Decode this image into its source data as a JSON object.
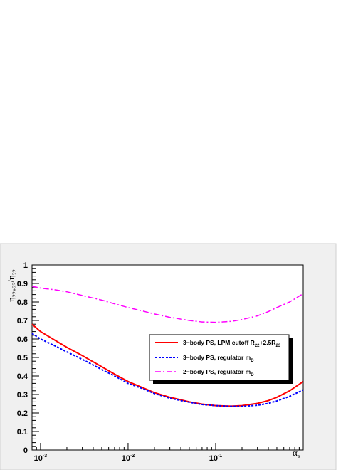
{
  "chart_data": {
    "type": "line",
    "xscale": "log",
    "xlim": [
      0.0008,
      1.0
    ],
    "ylim": [
      0,
      1
    ],
    "xlabel": {
      "main": "α",
      "sub": "s"
    },
    "ylabel": {
      "main": "η",
      "sub1": "22+23",
      "slash": "/η",
      "sub2": "22"
    },
    "x_tick_labels": [
      {
        "base": "10",
        "exp": "-3",
        "value": 0.001
      },
      {
        "base": "10",
        "exp": "-2",
        "value": 0.01
      },
      {
        "base": "10",
        "exp": "-1",
        "value": 0.1
      }
    ],
    "y_tick_labels": [
      "0",
      "0.1",
      "0.2",
      "0.3",
      "0.4",
      "0.5",
      "0.6",
      "0.7",
      "0.8",
      "0.9",
      "1"
    ],
    "y_tick_values": [
      0,
      0.1,
      0.2,
      0.3,
      0.4,
      0.5,
      0.6,
      0.7,
      0.8,
      0.9,
      1.0
    ],
    "series": [
      {
        "legend_main": "3−body PS, LPM cutoff R",
        "legend_sub1": "22",
        "legend_mid": "+2.5R",
        "legend_sub2": "23",
        "color": "#ff0000",
        "style": "solid",
        "x": [
          0.0008,
          0.001,
          0.0015,
          0.002,
          0.003,
          0.005,
          0.007,
          0.01,
          0.015,
          0.02,
          0.03,
          0.05,
          0.07,
          0.1,
          0.15,
          0.2,
          0.3,
          0.4,
          0.5,
          0.7,
          1.0
        ],
        "y": [
          0.68,
          0.64,
          0.59,
          0.555,
          0.51,
          0.45,
          0.41,
          0.37,
          0.335,
          0.31,
          0.285,
          0.26,
          0.248,
          0.24,
          0.237,
          0.24,
          0.252,
          0.267,
          0.285,
          0.32,
          0.37
        ]
      },
      {
        "legend_main": "3−body PS, regulator m",
        "legend_sub1": "D",
        "color": "#0000ff",
        "style": "dotted",
        "x": [
          0.0008,
          0.001,
          0.0015,
          0.002,
          0.003,
          0.005,
          0.007,
          0.01,
          0.015,
          0.02,
          0.03,
          0.05,
          0.07,
          0.1,
          0.15,
          0.2,
          0.3,
          0.4,
          0.5,
          0.7,
          1.0
        ],
        "y": [
          0.63,
          0.6,
          0.56,
          0.53,
          0.49,
          0.435,
          0.4,
          0.36,
          0.33,
          0.305,
          0.28,
          0.258,
          0.246,
          0.24,
          0.236,
          0.236,
          0.242,
          0.252,
          0.265,
          0.29,
          0.325
        ]
      },
      {
        "legend_main": "2−body PS, regulator m",
        "legend_sub1": "D",
        "color": "#ff00ff",
        "style": "dashdot",
        "x": [
          0.0008,
          0.001,
          0.0015,
          0.002,
          0.003,
          0.005,
          0.007,
          0.01,
          0.015,
          0.02,
          0.03,
          0.05,
          0.07,
          0.1,
          0.15,
          0.2,
          0.3,
          0.4,
          0.5,
          0.7,
          1.0
        ],
        "y": [
          0.885,
          0.875,
          0.865,
          0.855,
          0.835,
          0.81,
          0.79,
          0.77,
          0.75,
          0.735,
          0.717,
          0.7,
          0.692,
          0.69,
          0.695,
          0.705,
          0.725,
          0.748,
          0.77,
          0.8,
          0.845
        ]
      }
    ],
    "grid": false,
    "legend_position": "center-right"
  }
}
